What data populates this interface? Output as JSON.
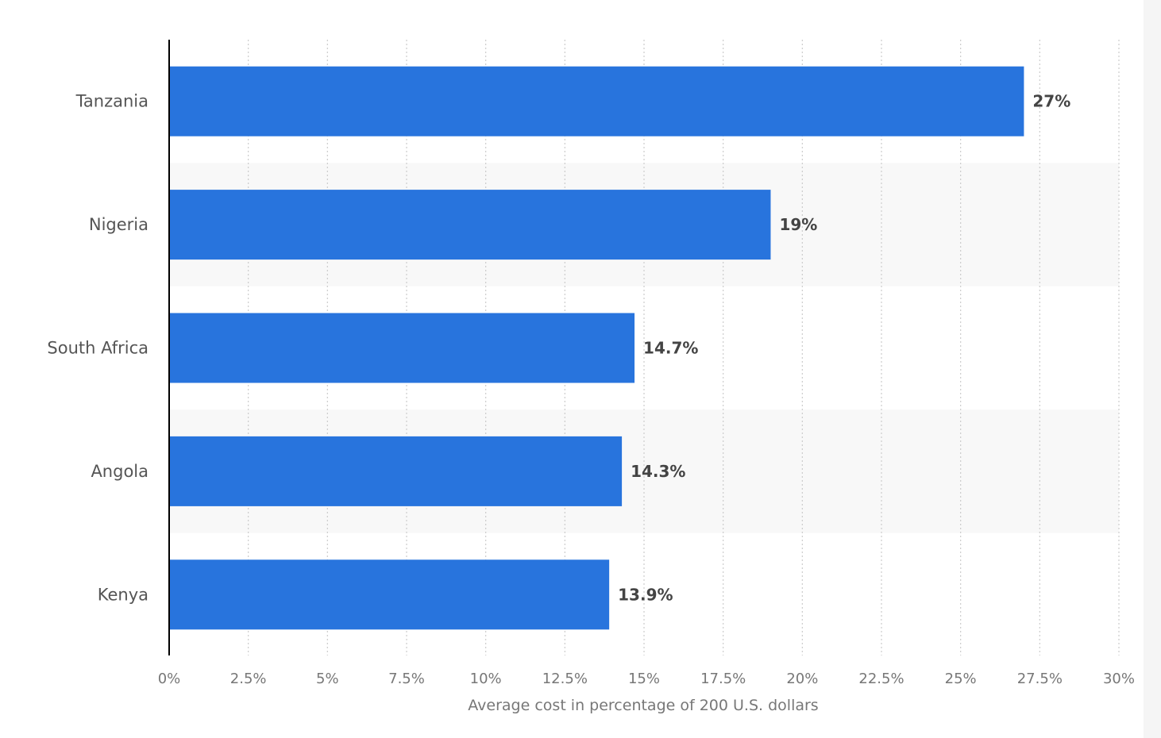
{
  "chart_data": {
    "type": "bar",
    "orientation": "horizontal",
    "categories": [
      "Tanzania",
      "Nigeria",
      "South Africa",
      "Angola",
      "Kenya"
    ],
    "values": [
      27,
      19,
      14.7,
      14.3,
      13.9
    ],
    "data_labels": [
      "27%",
      "19%",
      "14.7%",
      "14.3%",
      "13.9%"
    ],
    "title": "",
    "xlabel": "Average cost in percentage of 200 U.S. dollars",
    "ylabel": "",
    "xlim": [
      0,
      30
    ],
    "ticks": [
      0,
      2.5,
      5,
      7.5,
      10,
      12.5,
      15,
      17.5,
      20,
      22.5,
      25,
      27.5,
      30
    ],
    "tick_labels": [
      "0%",
      "2.5%",
      "5%",
      "7.5%",
      "10%",
      "12.5%",
      "15%",
      "17.5%",
      "20%",
      "22.5%",
      "25%",
      "27.5%",
      "30%"
    ],
    "grid": true,
    "legend": "none",
    "colors": {
      "bar": "#2874dd",
      "band": "#f8f8f8",
      "grid": "#cccccc"
    }
  }
}
